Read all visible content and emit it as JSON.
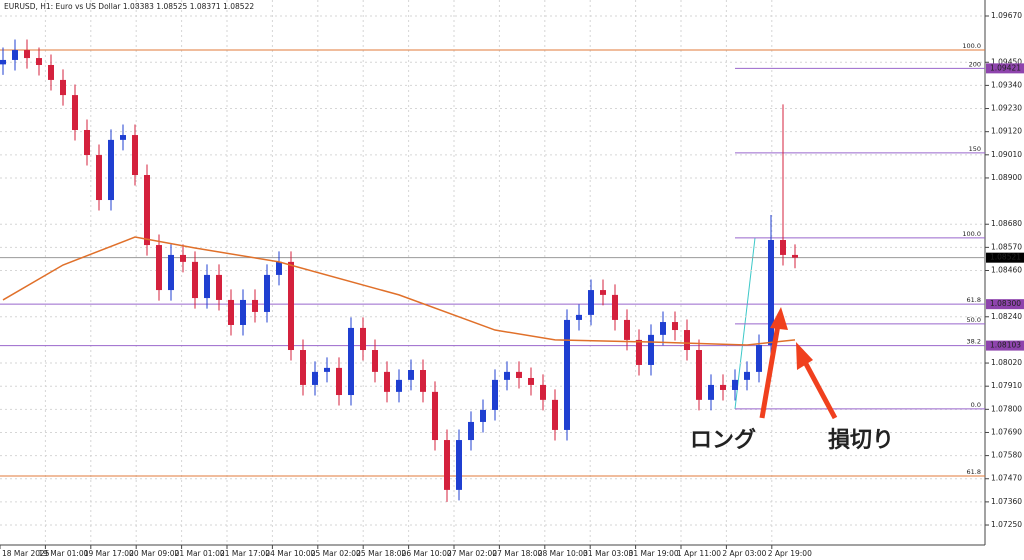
{
  "chart_data": {
    "type": "candlestick",
    "title": "EURUSD, H1:  Euro vs US Dollar  1.08383 1.08525 1.08371 1.08522",
    "categories": [
      "18 Mar 2025",
      "19 Mar 01:00",
      "19 Mar 17:00",
      "20 Mar 09:00",
      "21 Mar 01:00",
      "21 Mar 17:00",
      "24 Mar 10:00",
      "25 Mar 02:00",
      "25 Mar 18:00",
      "26 Mar 10:00",
      "27 Mar 02:00",
      "27 Mar 18:00",
      "28 Mar 10:00",
      "31 Mar 03:00",
      "31 Mar 19:00",
      "1 Apr 11:00",
      "2 Apr 03:00",
      "2 Apr 19:00"
    ],
    "open": [
      1.0944,
      1.09461,
      1.09508,
      1.0947,
      1.09437,
      1.09366,
      1.09294,
      1.09128,
      1.09009,
      1.08795,
      1.09081,
      1.09104,
      1.08914,
      1.08581,
      1.08367,
      1.08534,
      1.08501,
      1.08329,
      1.08439,
      1.0832,
      1.08201,
      1.0832,
      1.08263,
      1.08439,
      1.08501,
      1.08082,
      1.07916,
      1.07978,
      1.07997,
      1.07868,
      1.08187,
      1.08082,
      1.07978,
      1.07883,
      1.0794,
      1.07987,
      1.07883,
      1.07654,
      1.07417,
      1.07654,
      1.0774,
      1.07797,
      1.0794,
      1.07978,
      1.07949,
      1.07916,
      1.07845,
      1.07702,
      1.08225,
      1.08249,
      1.08367,
      1.08344,
      1.08225,
      1.0813,
      1.08011,
      1.08154,
      1.08215,
      1.08177,
      1.08082,
      1.07845,
      1.07916,
      1.07892,
      1.0794,
      1.07978,
      1.08106,
      1.08605,
      1.08534
    ],
    "high": [
      1.0952,
      1.09558,
      1.09558,
      1.0952,
      1.09487,
      1.09416,
      1.09344,
      1.09178,
      1.09059,
      1.09131,
      1.09154,
      1.09154,
      1.08964,
      1.08631,
      1.08584,
      1.08584,
      1.08551,
      1.08489,
      1.08489,
      1.0837,
      1.0837,
      1.0837,
      1.08489,
      1.08551,
      1.08551,
      1.08132,
      1.08028,
      1.08047,
      1.08047,
      1.08237,
      1.08237,
      1.08132,
      1.08028,
      1.0799,
      1.08037,
      1.08037,
      1.07933,
      1.07704,
      1.07704,
      1.0779,
      1.07847,
      1.0799,
      1.08028,
      1.08028,
      1.07999,
      1.07966,
      1.07895,
      1.08275,
      1.08299,
      1.08417,
      1.08417,
      1.08394,
      1.08275,
      1.0818,
      1.08204,
      1.08265,
      1.08265,
      1.08227,
      1.08132,
      1.07966,
      1.07966,
      1.0799,
      1.08028,
      1.08156,
      1.08724,
      1.0925,
      1.08584
    ],
    "low": [
      1.0939,
      1.09411,
      1.0942,
      1.09387,
      1.09316,
      1.09244,
      1.09078,
      1.08959,
      1.08745,
      1.08745,
      1.09031,
      1.08864,
      1.08531,
      1.08317,
      1.08317,
      1.08451,
      1.08279,
      1.08279,
      1.0827,
      1.08151,
      1.08151,
      1.08213,
      1.08213,
      1.08389,
      1.08032,
      1.07866,
      1.07866,
      1.07928,
      1.07818,
      1.07818,
      1.08032,
      1.07928,
      1.07833,
      1.07833,
      1.0789,
      1.07833,
      1.07604,
      1.0736,
      1.07367,
      1.07604,
      1.0769,
      1.07747,
      1.0789,
      1.07899,
      1.07866,
      1.07795,
      1.07652,
      1.07652,
      1.08175,
      1.08199,
      1.08294,
      1.08175,
      1.0808,
      1.07961,
      1.07961,
      1.08104,
      1.08127,
      1.08032,
      1.07795,
      1.07795,
      1.07842,
      1.07842,
      1.0789,
      1.07928,
      1.08056,
      1.08484,
      1.08471
    ],
    "close": [
      1.09461,
      1.09508,
      1.0947,
      1.09437,
      1.09366,
      1.09294,
      1.09128,
      1.09009,
      1.08795,
      1.09081,
      1.09104,
      1.08914,
      1.08581,
      1.08367,
      1.08534,
      1.08501,
      1.08329,
      1.08439,
      1.0832,
      1.08201,
      1.0832,
      1.08263,
      1.08439,
      1.08501,
      1.08082,
      1.07916,
      1.07978,
      1.07997,
      1.07868,
      1.08187,
      1.08082,
      1.07978,
      1.07883,
      1.0794,
      1.07987,
      1.07883,
      1.07654,
      1.07417,
      1.07654,
      1.0774,
      1.07797,
      1.0794,
      1.07978,
      1.07949,
      1.07916,
      1.07845,
      1.07702,
      1.08225,
      1.08249,
      1.08367,
      1.08344,
      1.08225,
      1.0813,
      1.08011,
      1.08154,
      1.08215,
      1.08177,
      1.08082,
      1.07845,
      1.07916,
      1.07892,
      1.0794,
      1.07978,
      1.08106,
      1.08605,
      1.08534,
      1.08521
    ],
    "up_color": "#1f3fd1",
    "down_color": "#d4213d",
    "ylim": [
      1.07155,
      1.09746
    ],
    "yticks": [
      {
        "value": 1.0967,
        "label": "1.09670"
      },
      {
        "value": 1.0945,
        "label": "1.09450"
      },
      {
        "value": 1.0934,
        "label": "1.09340"
      },
      {
        "value": 1.0923,
        "label": "1.09230"
      },
      {
        "value": 1.0912,
        "label": "1.09120"
      },
      {
        "value": 1.0901,
        "label": "1.09010"
      },
      {
        "value": 1.089,
        "label": "1.08900"
      },
      {
        "value": 1.0868,
        "label": "1.08680"
      },
      {
        "value": 1.0857,
        "label": "1.08570"
      },
      {
        "value": 1.0846,
        "label": "1.08460"
      },
      {
        "value": 1.0824,
        "label": "1.08240"
      },
      {
        "value": 1.0802,
        "label": "1.08020"
      },
      {
        "value": 1.0791,
        "label": "1.07910"
      },
      {
        "value": 1.078,
        "label": "1.07800"
      },
      {
        "value": 1.0769,
        "label": "1.07690"
      },
      {
        "value": 1.0758,
        "label": "1.07580"
      },
      {
        "value": 1.0747,
        "label": "1.07470"
      },
      {
        "value": 1.0736,
        "label": "1.07360"
      },
      {
        "value": 1.0725,
        "label": "1.07250"
      }
    ],
    "grid": true,
    "moving_average": {
      "color": "#e0702a",
      "x": [
        0,
        5,
        11,
        16,
        23,
        33,
        41,
        46,
        54,
        62,
        66
      ],
      "values": [
        1.0832,
        1.08486,
        1.08619,
        1.08567,
        1.08501,
        1.08344,
        1.08177,
        1.0813,
        1.0812,
        1.08106,
        1.0813
      ]
    },
    "levels": [
      {
        "label": "100.0",
        "value": 1.09508,
        "color": "#e07a3a",
        "span": "full"
      },
      {
        "label": "200",
        "value": 1.09421,
        "color": "#9966cc",
        "span": "right",
        "box": "#8e44ad"
      },
      {
        "label": "150",
        "value": 1.09019,
        "color": "#9966cc",
        "span": "right"
      },
      {
        "label": "100.0",
        "value": 1.08615,
        "color": "#9966cc",
        "span": "right"
      },
      {
        "value": 1.08521,
        "color": "#999999",
        "span": "full",
        "box": "#000000"
      },
      {
        "label": "61.8",
        "value": 1.083,
        "price_label": "1.08300",
        "color": "#9966cc",
        "span": "full",
        "box": "#8e44ad"
      },
      {
        "label": "50.0",
        "value": 1.08206,
        "color": "#9966cc",
        "span": "right"
      },
      {
        "label": "38.2",
        "value": 1.08103,
        "color": "#9966cc",
        "span": "full",
        "box": "#8e44ad"
      },
      {
        "label": "0.0",
        "value": 1.07802,
        "color": "#9966cc",
        "span": "right"
      },
      {
        "label": "61.8",
        "value": 1.07483,
        "color": "#e07a3a",
        "span": "full"
      }
    ],
    "annotations": [
      {
        "text": "ロング",
        "color": "#f0401e"
      },
      {
        "text": "損切り",
        "color": "#f0401e"
      }
    ]
  }
}
